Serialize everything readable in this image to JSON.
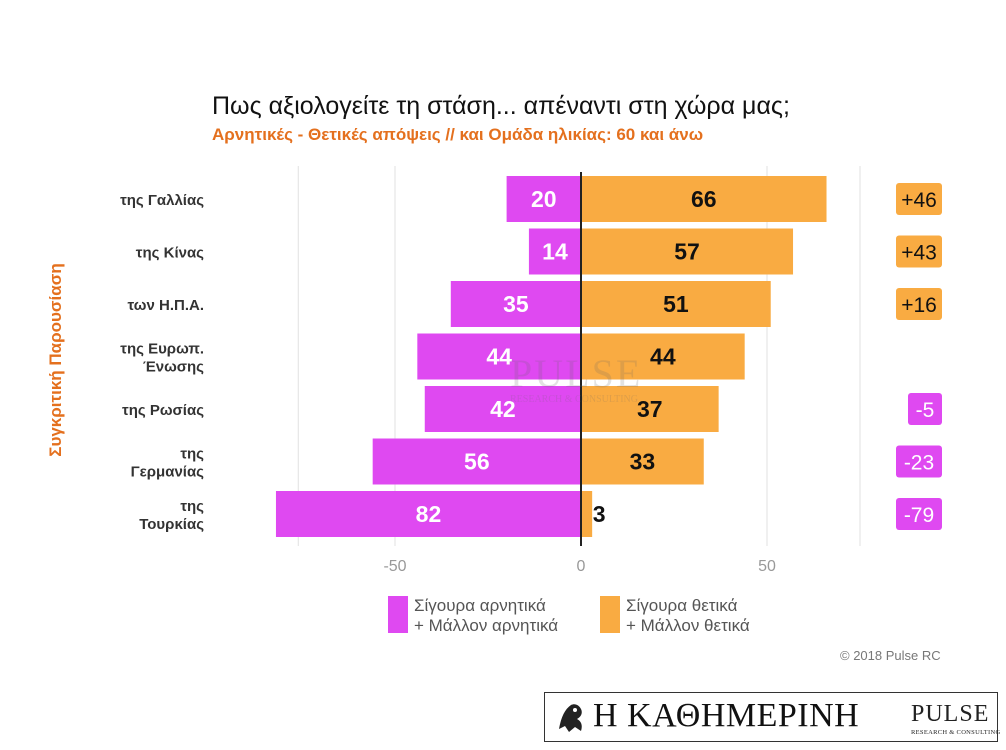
{
  "header": {
    "title": "Πως αξιολογείτε τη στάση... απέναντι στη χώρα μας;",
    "subtitle": "Αρνητικές - Θετικές απόψεις // και Ομάδα ηλικίας: 60 και άνω",
    "side_label": "Συγκριτική Παρουσίαση"
  },
  "chart_data": {
    "type": "bar",
    "orientation": "horizontal-diverging",
    "categories": [
      [
        "της Γαλλίας"
      ],
      [
        "της Κίνας"
      ],
      [
        "των Η.Π.Α."
      ],
      [
        "της Ευρωπ.",
        "Ένωσης"
      ],
      [
        "της Ρωσίας"
      ],
      [
        "της",
        "Γερμανίας"
      ],
      [
        "της",
        "Τουρκίας"
      ]
    ],
    "series": [
      {
        "name": "Σίγουρα αρνητικά + Μάλλον αρνητικά",
        "color": "#df49f1",
        "values": [
          20,
          14,
          35,
          44,
          42,
          56,
          82
        ]
      },
      {
        "name": "Σίγουρα θετικά + Μάλλον θετικά",
        "color": "#f9ab42",
        "values": [
          66,
          57,
          51,
          44,
          37,
          33,
          3
        ]
      }
    ],
    "net_labels": [
      "+46",
      "+43",
      "+16",
      "",
      "-5",
      "-23",
      "-79"
    ],
    "xticks": [
      -50,
      0,
      50
    ],
    "xtick_labels": [
      "-50",
      "0",
      "50"
    ],
    "xlim": [
      -100,
      100
    ],
    "grid": true
  },
  "legend": {
    "negative_label": [
      "Σίγουρα αρνητικά",
      "+ Μάλλον αρνητικά"
    ],
    "positive_label": [
      "Σίγουρα θετικά",
      "+ Μάλλον θετικά"
    ]
  },
  "footer": {
    "copyright": "© 2018 Pulse RC",
    "kathimerini": "Η ΚΑΘΗΜΕΡΙΝΗ",
    "pulse": "PULSE",
    "pulse_sub": "RESEARCH & CONSULTING"
  },
  "watermark": {
    "word": "PULSE",
    "sub": "RESEARCH & CONSULTING"
  }
}
